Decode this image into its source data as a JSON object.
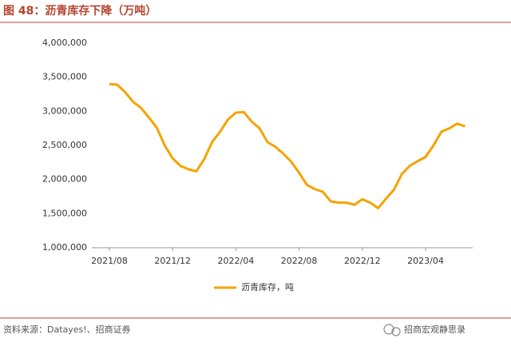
{
  "chart_data": {
    "type": "line",
    "title": "图 48：沥青库存下降（万吨）",
    "categories": [
      "2021/08",
      null,
      null,
      null,
      null,
      null,
      null,
      null,
      "2021/12",
      null,
      null,
      null,
      null,
      null,
      null,
      null,
      "2022/04",
      null,
      null,
      null,
      null,
      null,
      null,
      null,
      "2022/08",
      null,
      null,
      null,
      null,
      null,
      null,
      null,
      "2022/12",
      null,
      null,
      null,
      null,
      null,
      null,
      null,
      "2023/04",
      null,
      null,
      null,
      null,
      null
    ],
    "series": [
      {
        "name": "沥青库存，吨",
        "color": "#f5a300",
        "values": [
          3400000,
          3390000,
          3280000,
          3140000,
          3050000,
          2910000,
          2760000,
          2500000,
          2310000,
          2200000,
          2150000,
          2120000,
          2300000,
          2550000,
          2700000,
          2880000,
          2980000,
          2990000,
          2850000,
          2750000,
          2550000,
          2480000,
          2380000,
          2260000,
          2100000,
          1920000,
          1860000,
          1820000,
          1680000,
          1660000,
          1660000,
          1630000,
          1710000,
          1660000,
          1580000,
          1720000,
          1850000,
          2080000,
          2200000,
          2270000,
          2330000,
          2500000,
          2700000,
          2750000,
          2820000,
          2780000
        ]
      }
    ],
    "ylim": [
      1000000,
      4000000
    ],
    "yticks": [
      {
        "value": 1000000,
        "label": "1,000,000"
      },
      {
        "value": 1500000,
        "label": "1,500,000"
      },
      {
        "value": 2000000,
        "label": "2,000,000"
      },
      {
        "value": 2500000,
        "label": "2,500,000"
      },
      {
        "value": 3000000,
        "label": "3,000,000"
      },
      {
        "value": 3500000,
        "label": "3,500,000"
      },
      {
        "value": 4000000,
        "label": "4,000,000"
      }
    ],
    "grid": false,
    "legend": "bottom"
  },
  "footer": {
    "source": "资料来源：Datayes!、招商证券",
    "watermark": "招商宏观静思录"
  }
}
